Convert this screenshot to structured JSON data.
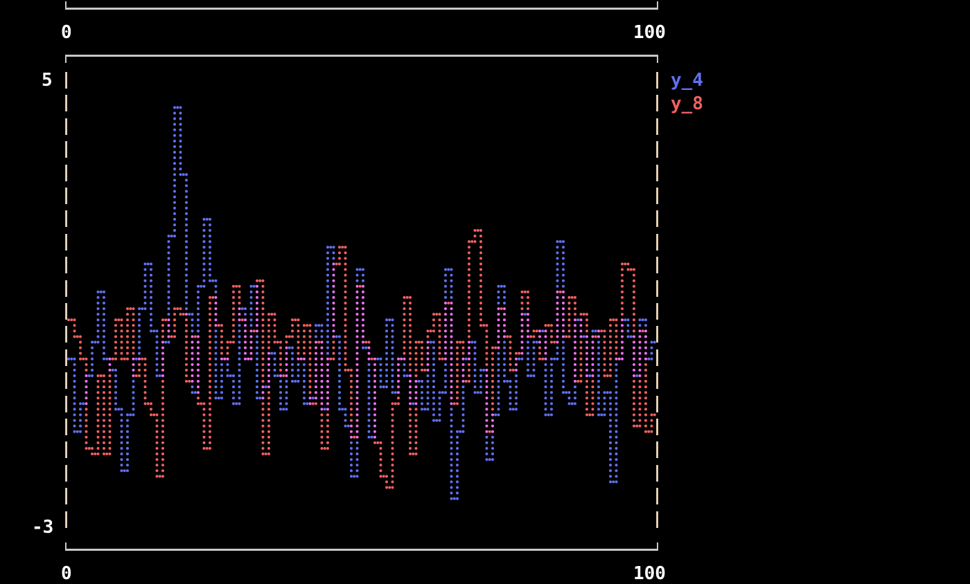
{
  "chart_data": {
    "type": "line",
    "title": "",
    "xlabel": "",
    "ylabel": "",
    "xlim": [
      0,
      100
    ],
    "ylim": [
      -3,
      5
    ],
    "x_tick_labels": [
      "0",
      "100"
    ],
    "y_tick_labels": [
      "5",
      "-3"
    ],
    "legend_placement": "right",
    "grid": false,
    "overlap_color": "#f070f0",
    "series": [
      {
        "name": "y_4",
        "color": "#6070f0",
        "values": [
          0.0,
          -1.3,
          -0.8,
          -0.3,
          0.3,
          1.2,
          0.0,
          -0.2,
          -0.9,
          -2.0,
          -1.0,
          0.0,
          0.9,
          1.7,
          0.5,
          -0.3,
          0.3,
          2.2,
          4.45,
          3.3,
          0.8,
          -0.6,
          1.3,
          2.55,
          1.4,
          -0.7,
          0.0,
          -0.3,
          -0.8,
          0.9,
          0.0,
          1.3,
          -0.7,
          -0.5,
          0.1,
          -0.3,
          -0.9,
          0.2,
          -0.4,
          0.0,
          -0.8,
          -0.7,
          0.6,
          -0.9,
          2.0,
          0.4,
          -0.9,
          -1.2,
          -2.1,
          1.65,
          0.2,
          -1.4,
          0.0,
          -0.5,
          0.7,
          -0.6,
          0.0,
          -0.3,
          -0.8,
          -0.4,
          -0.9,
          0.3,
          -1.1,
          -0.6,
          1.65,
          -2.5,
          -1.3,
          0.0,
          0.3,
          -0.6,
          -0.2,
          -1.8,
          -1.0,
          1.3,
          -0.4,
          -0.9,
          0.0,
          0.8,
          -0.3,
          0.3,
          0.5,
          -1.0,
          0.0,
          2.1,
          -0.6,
          -0.8,
          0.7,
          0.4,
          -0.3,
          0.5,
          -1.0,
          -0.6,
          -2.2,
          0.0,
          0.7,
          0.4,
          -0.3,
          0.7,
          0.0,
          0.3
        ]
      },
      {
        "name": "y_8",
        "color": "#f06060",
        "values": [
          0.7,
          0.4,
          0.0,
          -1.6,
          -1.7,
          -0.3,
          -1.7,
          0.0,
          0.7,
          0.0,
          0.9,
          -0.3,
          0.0,
          -0.8,
          -1.0,
          -2.1,
          0.7,
          0.4,
          0.9,
          0.8,
          -0.4,
          0.4,
          -0.8,
          -1.6,
          1.1,
          0.6,
          0.0,
          0.3,
          1.3,
          0.7,
          0.0,
          0.5,
          1.4,
          -1.7,
          0.8,
          0.3,
          -0.3,
          0.4,
          0.7,
          0.0,
          0.6,
          -0.8,
          0.3,
          -1.6,
          0.0,
          1.7,
          2.0,
          -0.2,
          -1.4,
          1.3,
          0.3,
          0.0,
          -1.5,
          -2.1,
          -2.3,
          -0.8,
          0.0,
          1.1,
          -1.7,
          0.3,
          -0.2,
          0.5,
          0.8,
          0.0,
          1.0,
          -0.8,
          0.3,
          -0.4,
          2.1,
          2.3,
          0.6,
          -1.3,
          0.2,
          0.9,
          0.4,
          -0.2,
          0.1,
          1.2,
          0.4,
          0.5,
          0.0,
          0.6,
          0.3,
          1.2,
          0.4,
          1.1,
          -0.4,
          0.8,
          -1.0,
          0.4,
          0.5,
          -0.3,
          0.7,
          0.0,
          1.7,
          1.6,
          -1.2,
          0.5,
          -1.3,
          -1.0
        ]
      }
    ]
  }
}
